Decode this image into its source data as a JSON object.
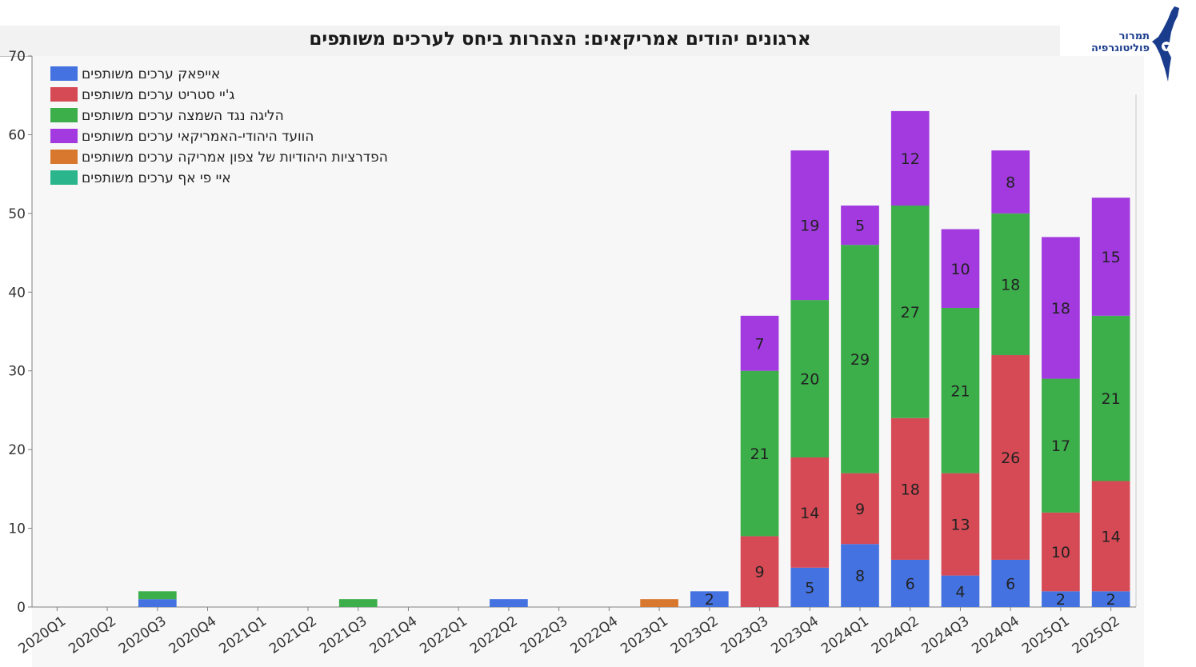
{
  "logo": {
    "line1": "תמרור",
    "line2": "פוליטוגרפיה",
    "icon": "israel-map-icon"
  },
  "chart_data": {
    "type": "bar",
    "stacked": true,
    "title": "ארגונים יהודים אמריקאים: הצהרות ביחס לערכים משותפים",
    "xlabel": "",
    "ylabel": "",
    "ylim": [
      0,
      70
    ],
    "yticks": [
      0,
      10,
      20,
      30,
      40,
      50,
      60,
      70
    ],
    "grid": false,
    "legend_position": "top-left",
    "categories": [
      "2020Q1",
      "2020Q2",
      "2020Q3",
      "2020Q4",
      "2021Q1",
      "2021Q2",
      "2021Q3",
      "2021Q4",
      "2022Q1",
      "2022Q2",
      "2022Q3",
      "2022Q4",
      "2023Q1",
      "2023Q2",
      "2023Q3",
      "2023Q4",
      "2024Q1",
      "2024Q2",
      "2024Q3",
      "2024Q4",
      "2025Q1",
      "2025Q2"
    ],
    "series": [
      {
        "name": "אייפאק ערכים משותפים",
        "color": "#4472e0",
        "values": [
          0,
          0,
          1,
          0,
          0,
          0,
          0,
          0,
          0,
          1,
          0,
          0,
          0,
          2,
          0,
          5,
          8,
          6,
          4,
          6,
          2,
          2
        ]
      },
      {
        "name": "ג'יי סטריט ערכים משותפים",
        "color": "#d64a55",
        "values": [
          0,
          0,
          0,
          0,
          0,
          0,
          0,
          0,
          0,
          0,
          0,
          0,
          0,
          0,
          9,
          14,
          9,
          18,
          13,
          26,
          10,
          14
        ]
      },
      {
        "name": "הליגה נגד השמצה ערכים משותפים",
        "color": "#3cae4a",
        "values": [
          0,
          0,
          1,
          0,
          0,
          0,
          1,
          0,
          0,
          0,
          0,
          0,
          0,
          0,
          21,
          20,
          29,
          27,
          21,
          18,
          17,
          21
        ]
      },
      {
        "name": "הוועד היהודי-האמריקאי ערכים משותפים",
        "color": "#a23ae0",
        "values": [
          0,
          0,
          0,
          0,
          0,
          0,
          0,
          0,
          0,
          0,
          0,
          0,
          0,
          0,
          7,
          19,
          5,
          12,
          10,
          8,
          18,
          15
        ]
      },
      {
        "name": "הפדרציות היהודיות של צפון אמריקה ערכים משותפים",
        "color": "#d8782e",
        "values": [
          0,
          0,
          0,
          0,
          0,
          0,
          0,
          0,
          0,
          0,
          0,
          0,
          1,
          0,
          0,
          0,
          0,
          0,
          0,
          0,
          0,
          0
        ]
      },
      {
        "name": "איי פי אף  ערכים משותפים",
        "color": "#2bb58c",
        "values": [
          0,
          0,
          0,
          0,
          0,
          0,
          0,
          0,
          0,
          0,
          0,
          0,
          0,
          0,
          0,
          0,
          0,
          0,
          0,
          0,
          0,
          0
        ]
      }
    ],
    "label_min_value": 2
  }
}
